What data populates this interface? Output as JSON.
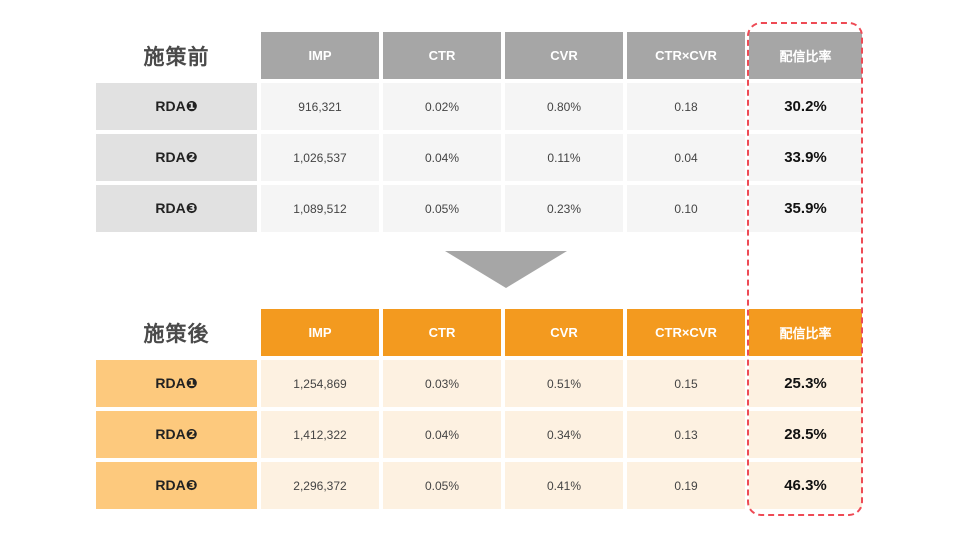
{
  "before": {
    "title": "施策前",
    "headers": [
      "IMP",
      "CTR",
      "CVR",
      "CTR×CVR",
      "配信比率"
    ],
    "rows": [
      {
        "label": "RDA❶",
        "imp": "916,321",
        "ctr": "0.02%",
        "cvr": "0.80%",
        "ctr_cvr": "0.18",
        "rate": "30.2%"
      },
      {
        "label": "RDA❷",
        "imp": "1,026,537",
        "ctr": "0.04%",
        "cvr": "0.11%",
        "ctr_cvr": "0.04",
        "rate": "33.9%"
      },
      {
        "label": "RDA❸",
        "imp": "1,089,512",
        "ctr": "0.05%",
        "cvr": "0.23%",
        "ctr_cvr": "0.10",
        "rate": "35.9%"
      }
    ]
  },
  "after": {
    "title": "施策後",
    "headers": [
      "IMP",
      "CTR",
      "CVR",
      "CTR×CVR",
      "配信比率"
    ],
    "rows": [
      {
        "label": "RDA❶",
        "imp": "1,254,869",
        "ctr": "0.03%",
        "cvr": "0.51%",
        "ctr_cvr": "0.15",
        "rate": "25.3%"
      },
      {
        "label": "RDA❷",
        "imp": "1,412,322",
        "ctr": "0.04%",
        "cvr": "0.34%",
        "ctr_cvr": "0.13",
        "rate": "28.5%"
      },
      {
        "label": "RDA❸",
        "imp": "2,296,372",
        "ctr": "0.05%",
        "cvr": "0.41%",
        "ctr_cvr": "0.19",
        "rate": "46.3%"
      }
    ]
  },
  "colors": {
    "before_header": "#a6a6a6",
    "after_header": "#f39a1f",
    "highlight_border": "#ee4a55"
  }
}
